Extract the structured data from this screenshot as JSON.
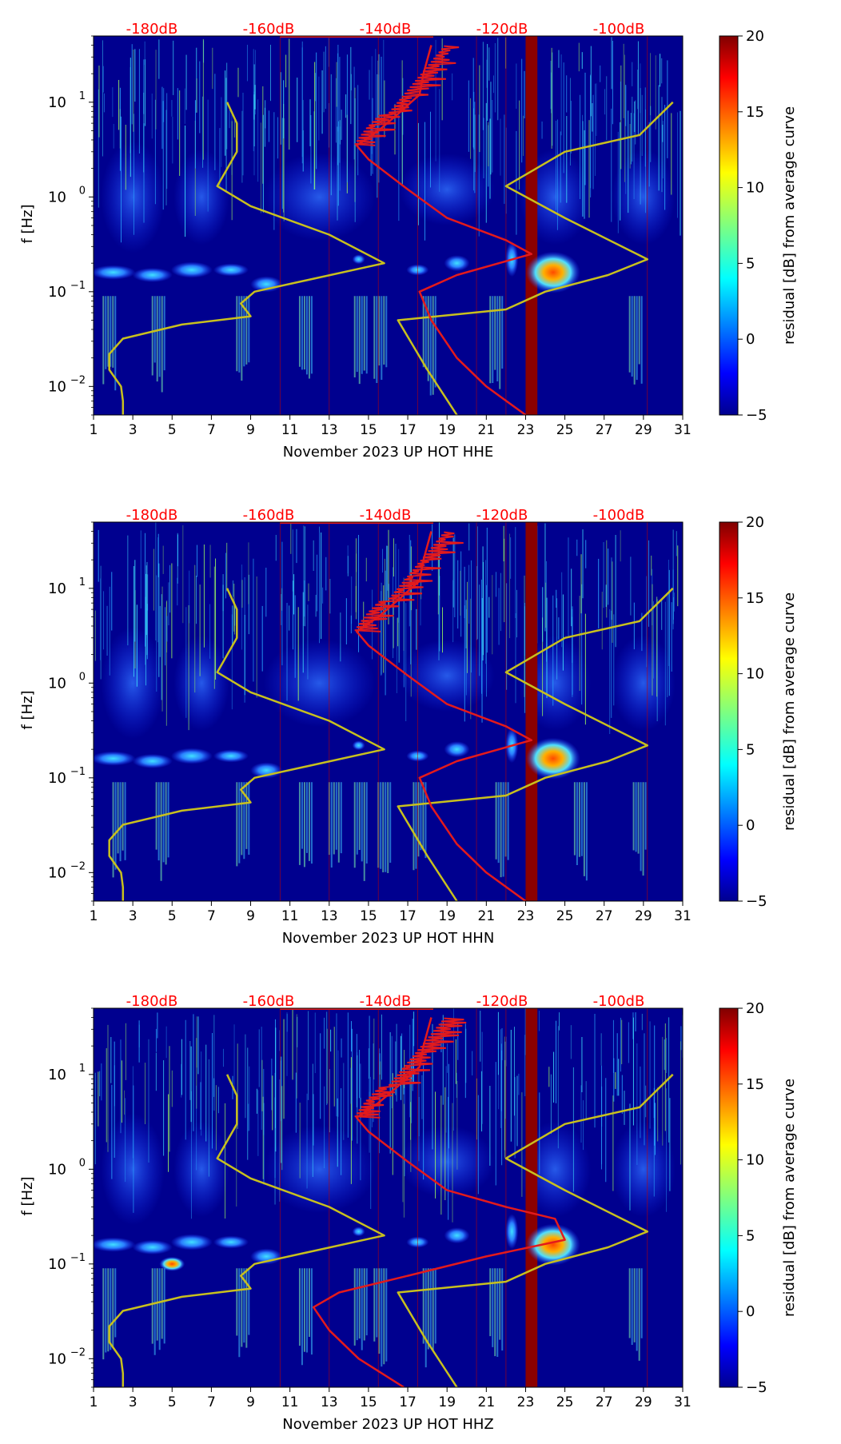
{
  "figure": {
    "subplots": [
      {
        "xlabel": "November 2023 UP HOT  HHE",
        "component": "HHE"
      },
      {
        "xlabel": "November 2023 UP HOT  HHN",
        "component": "HHN"
      },
      {
        "xlabel": "November 2023 UP HOT  HHZ",
        "component": "HHZ"
      }
    ],
    "ylabel": "f [Hz]",
    "colorbar_label": "residual [dB] from average curve",
    "colorbar_ticks": [
      "20",
      "15",
      "10",
      "5",
      "0",
      "−5"
    ],
    "x_ticks": [
      "1",
      "3",
      "5",
      "7",
      "9",
      "11",
      "13",
      "15",
      "17",
      "19",
      "21",
      "23",
      "25",
      "27",
      "29",
      "31"
    ],
    "y_ticks": [
      {
        "base": "10",
        "exp": "1"
      },
      {
        "base": "10",
        "exp": "0"
      },
      {
        "base": "10",
        "exp": "−1"
      },
      {
        "base": "10",
        "exp": "−2"
      }
    ],
    "top_db_labels": [
      "-180dB",
      "-160dB",
      "-140dB",
      "-120dB",
      "-100dB"
    ]
  },
  "colors": {
    "background": "#00008f",
    "red_curve": "#e31a1c",
    "yellow_curve": "#c8c01e",
    "db_label": "#ff0000",
    "highlight_band": "#8b0000"
  },
  "chart_data": [
    {
      "type": "heatmap",
      "title": "",
      "xlabel": "November 2023 UP HOT  HHE",
      "ylabel": "f [Hz]",
      "xlim": [
        1,
        31
      ],
      "ylim": [
        0.005,
        50
      ],
      "yscale": "log",
      "colorbar": {
        "label": "residual [dB] from average curve",
        "range": [
          -5,
          20
        ],
        "colormap": "jet"
      },
      "top_axis_db": [
        -180,
        -160,
        -140,
        -120,
        -100
      ],
      "dark_band_day": [
        23,
        23.6
      ],
      "noise_model_curve": {
        "color": "yellow",
        "points": [
          [
            2.5,
            0.005
          ],
          [
            2.5,
            0.007
          ],
          [
            2.4,
            0.01
          ],
          [
            1.8,
            0.015
          ],
          [
            1.8,
            0.022
          ],
          [
            2.5,
            0.032
          ],
          [
            5.5,
            0.045
          ],
          [
            9.0,
            0.055
          ],
          [
            8.5,
            0.075
          ],
          [
            9.2,
            0.1
          ],
          [
            15.8,
            0.2
          ],
          [
            13.0,
            0.4
          ],
          [
            9.0,
            0.8
          ],
          [
            7.3,
            1.3
          ],
          [
            8.3,
            3.0
          ],
          [
            8.3,
            6.0
          ],
          [
            7.8,
            10.0
          ]
        ]
      },
      "median_psd_curve": {
        "color": "red",
        "points": [
          [
            23,
            0.005
          ],
          [
            21,
            0.01
          ],
          [
            19.5,
            0.02
          ],
          [
            18.2,
            0.05
          ],
          [
            17.6,
            0.1
          ],
          [
            19.5,
            0.15
          ],
          [
            23.3,
            0.25
          ],
          [
            22,
            0.35
          ],
          [
            19,
            0.6
          ],
          [
            17,
            1.2
          ],
          [
            15,
            2.5
          ],
          [
            14.4,
            3.5
          ],
          [
            15.5,
            5.0
          ],
          [
            16.5,
            7.5
          ],
          [
            17.6,
            12.0
          ],
          [
            17.8,
            20.0
          ],
          [
            18.2,
            40.0
          ]
        ]
      },
      "high_noise_model_curve": {
        "color": "yellow",
        "points": [
          [
            19.5,
            0.005
          ],
          [
            18.0,
            0.015
          ],
          [
            16.5,
            0.05
          ],
          [
            22,
            0.065
          ],
          [
            24,
            0.1
          ],
          [
            27.2,
            0.15
          ],
          [
            29.2,
            0.22
          ],
          [
            25,
            0.6
          ],
          [
            22,
            1.3
          ],
          [
            25,
            3.0
          ],
          [
            28.8,
            4.5
          ],
          [
            30.5,
            10.0
          ]
        ]
      }
    },
    {
      "type": "heatmap",
      "title": "",
      "xlabel": "November 2023 UP HOT  HHN",
      "ylabel": "f [Hz]",
      "xlim": [
        1,
        31
      ],
      "ylim": [
        0.005,
        50
      ],
      "yscale": "log",
      "colorbar": {
        "label": "residual [dB] from average curve",
        "range": [
          -5,
          20
        ],
        "colormap": "jet"
      },
      "top_axis_db": [
        -180,
        -160,
        -140,
        -120,
        -100
      ],
      "dark_band_day": [
        23,
        23.6
      ],
      "noise_model_curve": {
        "color": "yellow",
        "points": [
          [
            2.5,
            0.005
          ],
          [
            2.5,
            0.007
          ],
          [
            2.4,
            0.01
          ],
          [
            1.8,
            0.015
          ],
          [
            1.8,
            0.022
          ],
          [
            2.5,
            0.032
          ],
          [
            5.5,
            0.045
          ],
          [
            9.0,
            0.055
          ],
          [
            8.5,
            0.075
          ],
          [
            9.2,
            0.1
          ],
          [
            15.8,
            0.2
          ],
          [
            13.0,
            0.4
          ],
          [
            9.0,
            0.8
          ],
          [
            7.3,
            1.3
          ],
          [
            8.3,
            3.0
          ],
          [
            8.3,
            6.0
          ],
          [
            7.8,
            10.0
          ]
        ]
      },
      "median_psd_curve": {
        "color": "red",
        "points": [
          [
            23,
            0.005
          ],
          [
            21,
            0.01
          ],
          [
            19.5,
            0.02
          ],
          [
            18.2,
            0.05
          ],
          [
            17.6,
            0.1
          ],
          [
            19.5,
            0.15
          ],
          [
            23.3,
            0.25
          ],
          [
            22,
            0.35
          ],
          [
            19,
            0.6
          ],
          [
            17,
            1.2
          ],
          [
            15,
            2.5
          ],
          [
            14.4,
            3.5
          ],
          [
            15.5,
            5.0
          ],
          [
            16.5,
            7.5
          ],
          [
            17.6,
            12.0
          ],
          [
            17.8,
            20.0
          ],
          [
            18.2,
            40.0
          ]
        ]
      },
      "high_noise_model_curve": {
        "color": "yellow",
        "points": [
          [
            19.5,
            0.005
          ],
          [
            18.0,
            0.015
          ],
          [
            16.5,
            0.05
          ],
          [
            22,
            0.065
          ],
          [
            24,
            0.1
          ],
          [
            27.2,
            0.15
          ],
          [
            29.2,
            0.22
          ],
          [
            25,
            0.6
          ],
          [
            22,
            1.3
          ],
          [
            25,
            3.0
          ],
          [
            28.8,
            4.5
          ],
          [
            30.5,
            10.0
          ]
        ]
      }
    },
    {
      "type": "heatmap",
      "title": "",
      "xlabel": "November 2023 UP HOT  HHZ",
      "ylabel": "f [Hz]",
      "xlim": [
        1,
        31
      ],
      "ylim": [
        0.005,
        50
      ],
      "yscale": "log",
      "colorbar": {
        "label": "residual [dB] from average curve",
        "range": [
          -5,
          20
        ],
        "colormap": "jet"
      },
      "top_axis_db": [
        -180,
        -160,
        -140,
        -120,
        -100
      ],
      "dark_band_day": [
        23,
        23.6
      ],
      "noise_model_curve": {
        "color": "yellow",
        "points": [
          [
            2.5,
            0.005
          ],
          [
            2.5,
            0.007
          ],
          [
            2.4,
            0.01
          ],
          [
            1.8,
            0.015
          ],
          [
            1.8,
            0.022
          ],
          [
            2.5,
            0.032
          ],
          [
            5.5,
            0.045
          ],
          [
            9.0,
            0.055
          ],
          [
            8.5,
            0.075
          ],
          [
            9.2,
            0.1
          ],
          [
            15.8,
            0.2
          ],
          [
            13.0,
            0.4
          ],
          [
            9.0,
            0.8
          ],
          [
            7.3,
            1.3
          ],
          [
            8.3,
            3.0
          ],
          [
            8.3,
            6.0
          ],
          [
            7.8,
            10.0
          ]
        ]
      },
      "median_psd_curve": {
        "color": "red",
        "points": [
          [
            16.8,
            0.005
          ],
          [
            14.5,
            0.01
          ],
          [
            13,
            0.02
          ],
          [
            12.2,
            0.035
          ],
          [
            13.5,
            0.05
          ],
          [
            17,
            0.075
          ],
          [
            21,
            0.12
          ],
          [
            25,
            0.18
          ],
          [
            24.5,
            0.3
          ],
          [
            22,
            0.4
          ],
          [
            19,
            0.6
          ],
          [
            17,
            1.2
          ],
          [
            15,
            2.5
          ],
          [
            14.4,
            3.5
          ],
          [
            15.5,
            5.0
          ],
          [
            16.5,
            7.5
          ],
          [
            17.6,
            12.0
          ],
          [
            17.8,
            20.0
          ],
          [
            18.2,
            40.0
          ]
        ]
      },
      "high_noise_model_curve": {
        "color": "yellow",
        "points": [
          [
            19.5,
            0.005
          ],
          [
            18.0,
            0.015
          ],
          [
            16.5,
            0.05
          ],
          [
            22,
            0.065
          ],
          [
            24,
            0.1
          ],
          [
            27.2,
            0.15
          ],
          [
            29.2,
            0.22
          ],
          [
            25,
            0.6
          ],
          [
            22,
            1.3
          ],
          [
            25,
            3.0
          ],
          [
            28.8,
            4.5
          ],
          [
            30.5,
            10.0
          ]
        ]
      }
    }
  ]
}
